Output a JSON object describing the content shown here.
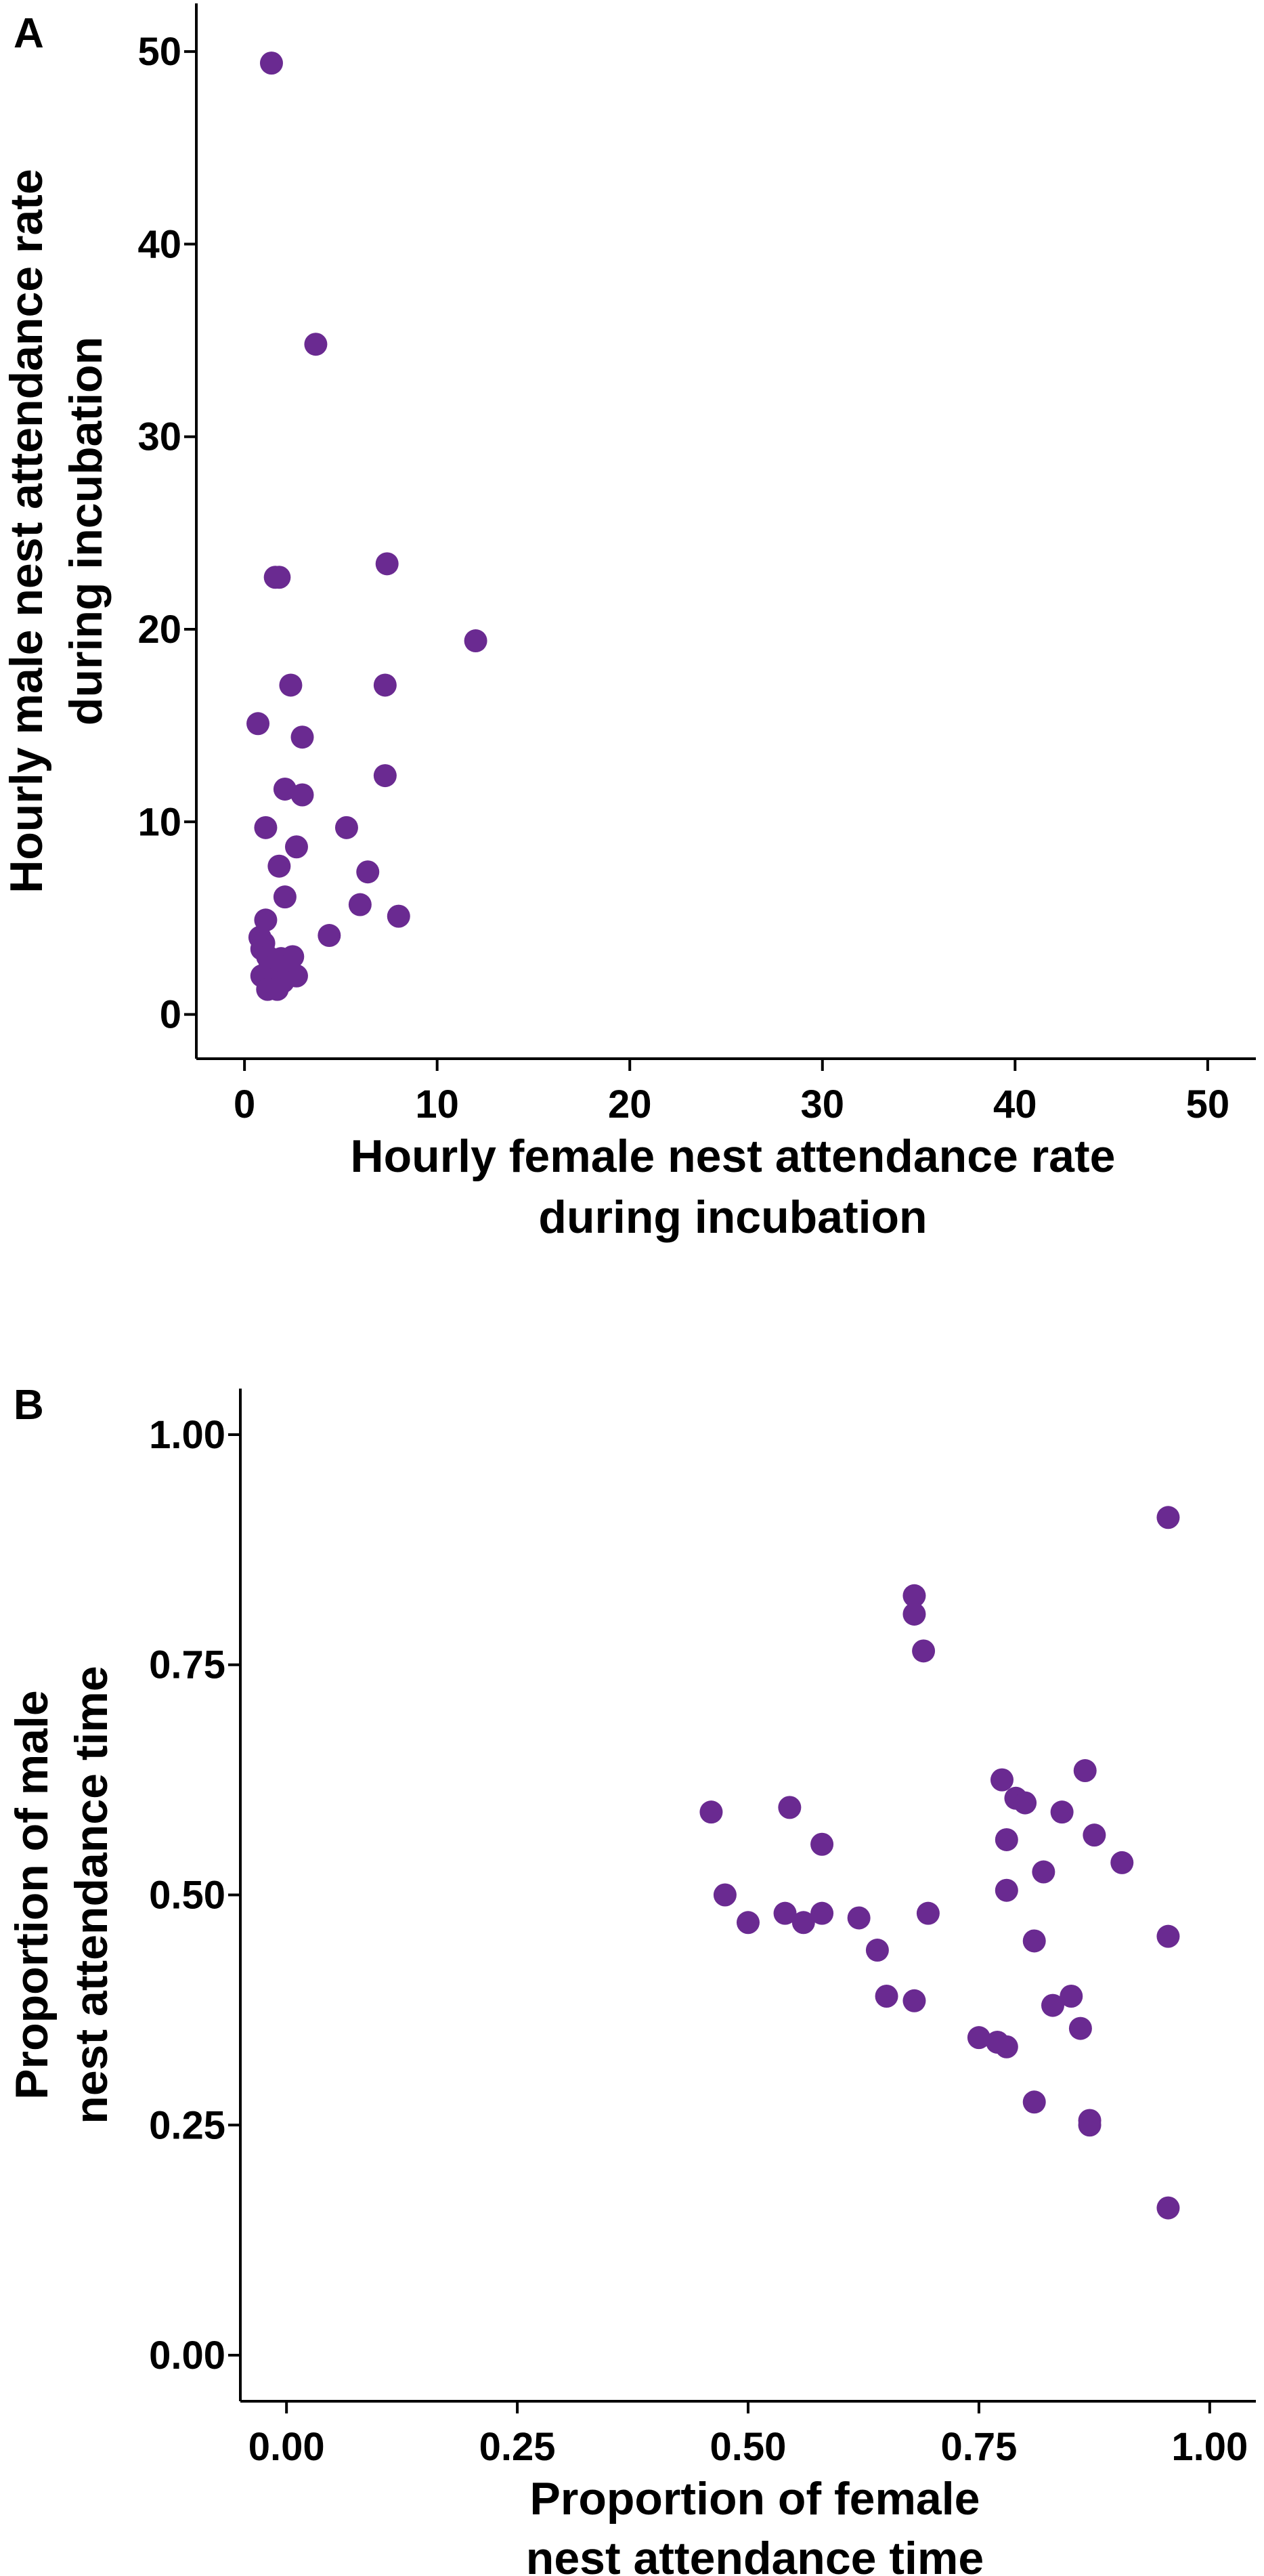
{
  "chart_data": [
    {
      "type": "scatter",
      "panel": "A",
      "xlabel": [
        "Hourly female nest attendance rate",
        "during incubation"
      ],
      "ylabel": [
        "Hourly male nest attendance rate",
        "during incubation"
      ],
      "xlim": [
        -2.5,
        52.5
      ],
      "ylim": [
        -2.3,
        52.5
      ],
      "xticks": [
        0,
        10,
        20,
        30,
        40,
        50
      ],
      "yticks": [
        0,
        10,
        20,
        30,
        40,
        50
      ],
      "xtick_labels": [
        "0",
        "10",
        "20",
        "30",
        "40",
        "50"
      ],
      "ytick_labels": [
        "0",
        "10",
        "20",
        "30",
        "40",
        "50"
      ],
      "point_color": "#6a2a91",
      "x": [
        1.4,
        3.7,
        1.6,
        1.8,
        7.4,
        12.0,
        2.4,
        7.3,
        0.7,
        3.0,
        2.1,
        7.3,
        3.0,
        1.1,
        5.3,
        2.7,
        1.8,
        6.4,
        2.1,
        6.0,
        8.0,
        1.1,
        4.4,
        0.8,
        1.0,
        0.9,
        1.2,
        2.5,
        1.9,
        2.2,
        1.3,
        1.6,
        2.7,
        0.9,
        1.6,
        2.0,
        1.2,
        1.7
      ],
      "y": [
        49.4,
        34.8,
        22.7,
        22.7,
        23.4,
        19.4,
        17.1,
        17.1,
        15.1,
        14.4,
        11.7,
        12.4,
        11.4,
        9.7,
        9.7,
        8.7,
        7.7,
        7.4,
        6.1,
        5.7,
        5.1,
        4.9,
        4.1,
        4.0,
        3.7,
        3.4,
        3.0,
        3.0,
        2.9,
        2.5,
        2.4,
        2.2,
        2.0,
        2.0,
        1.7,
        1.7,
        1.3,
        1.3
      ]
    },
    {
      "type": "scatter",
      "panel": "B",
      "xlabel": [
        "Proportion of female",
        "nest attendance time"
      ],
      "ylabel": [
        "Proportion of male",
        "nest attendance time"
      ],
      "xlim": [
        -0.05,
        1.05
      ],
      "ylim": [
        -0.05,
        1.05
      ],
      "xticks": [
        0,
        0.25,
        0.5,
        0.75,
        1.0
      ],
      "yticks": [
        0,
        0.25,
        0.5,
        0.75,
        1.0
      ],
      "xtick_labels": [
        "0.00",
        "0.25",
        "0.50",
        "0.75",
        "1.00"
      ],
      "ytick_labels": [
        "0.00",
        "0.25",
        "0.50",
        "0.75",
        "1.00"
      ],
      "point_color": "#6a2a91",
      "x": [
        0.955,
        0.68,
        0.68,
        0.69,
        0.865,
        0.775,
        0.79,
        0.8,
        0.46,
        0.545,
        0.84,
        0.78,
        0.875,
        0.58,
        0.905,
        0.82,
        0.475,
        0.78,
        0.695,
        0.54,
        0.58,
        0.62,
        0.5,
        0.56,
        0.955,
        0.81,
        0.64,
        0.85,
        0.65,
        0.83,
        0.68,
        0.86,
        0.75,
        0.77,
        0.78,
        0.81,
        0.87,
        0.87,
        0.955
      ],
      "y": [
        0.91,
        0.825,
        0.805,
        0.765,
        0.635,
        0.625,
        0.605,
        0.6,
        0.59,
        0.595,
        0.59,
        0.56,
        0.565,
        0.555,
        0.535,
        0.525,
        0.5,
        0.505,
        0.48,
        0.48,
        0.48,
        0.475,
        0.47,
        0.47,
        0.455,
        0.45,
        0.44,
        0.39,
        0.39,
        0.38,
        0.385,
        0.355,
        0.345,
        0.34,
        0.335,
        0.275,
        0.255,
        0.25,
        0.16
      ]
    }
  ],
  "panels": [
    {
      "letter": "A"
    },
    {
      "letter": "B"
    }
  ]
}
